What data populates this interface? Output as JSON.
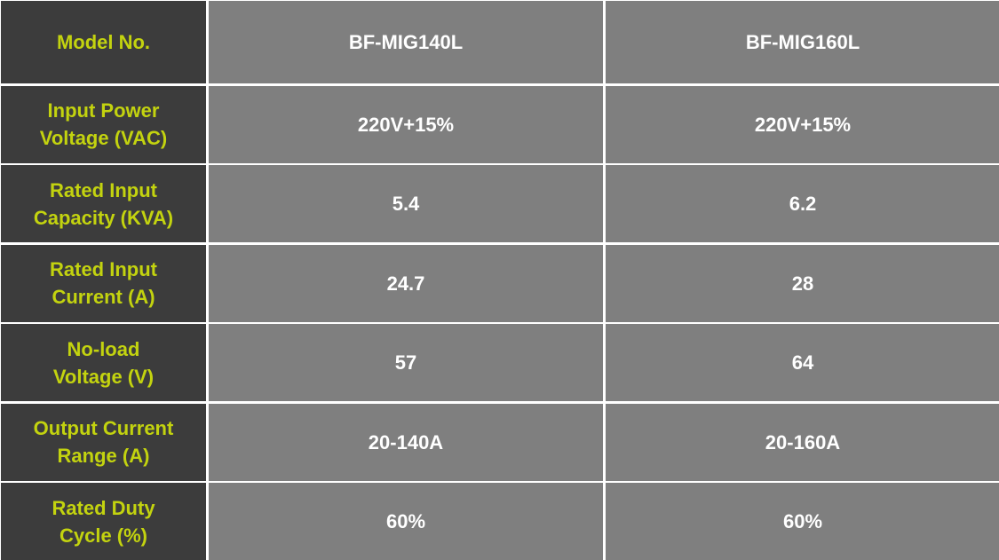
{
  "colors": {
    "label_background": "#3c3c3c",
    "label_text": "#c3d30f",
    "value_background": "#7f7f7f",
    "value_text": "#ffffff",
    "grid_lines": "#ffffff"
  },
  "table": {
    "header": {
      "label": "Model No.",
      "models": [
        "BF-MIG140L",
        "BF-MIG160L"
      ]
    },
    "rows": [
      {
        "label": "Input Power\nVoltage (VAC)",
        "values": [
          "220V+15%",
          "220V+15%"
        ]
      },
      {
        "label": "Rated Input\nCapacity (KVA)",
        "values": [
          "5.4",
          "6.2"
        ]
      },
      {
        "label": "Rated Input\nCurrent (A)",
        "values": [
          "24.7",
          "28"
        ]
      },
      {
        "label": "No-load\nVoltage (V)",
        "values": [
          "57",
          "64"
        ]
      },
      {
        "label": "Output Current\nRange (A)",
        "values": [
          "20-140A",
          "20-160A"
        ]
      },
      {
        "label": "Rated Duty\nCycle (%)",
        "values": [
          "60%",
          "60%"
        ]
      }
    ]
  }
}
